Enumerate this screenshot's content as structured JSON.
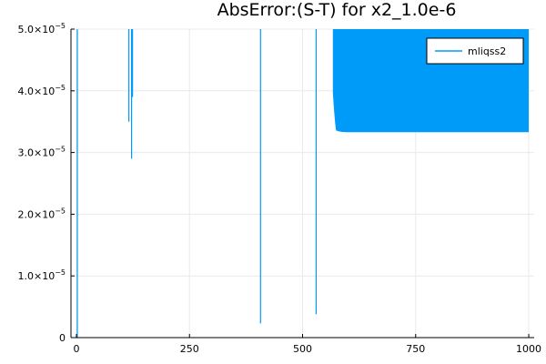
{
  "chart_data": {
    "type": "line",
    "title": "AbsError:(S-T) for x2_1.0e-6",
    "xlabel": "",
    "ylabel": "",
    "xlim": [
      -12,
      1012
    ],
    "ylim": [
      0,
      5e-05
    ],
    "x_ticks": [
      0,
      250,
      500,
      750,
      1000
    ],
    "x_tick_labels": [
      "0",
      "250",
      "500",
      "750",
      "1000"
    ],
    "y_ticks": [
      0,
      1e-05,
      2e-05,
      3e-05,
      4e-05,
      5e-05
    ],
    "y_tick_labels": [
      {
        "mant": "0",
        "exp": ""
      },
      {
        "mant": "1.0×10",
        "exp": "−5"
      },
      {
        "mant": "2.0×10",
        "exp": "−5"
      },
      {
        "mant": "3.0×10",
        "exp": "−5"
      },
      {
        "mant": "4.0×10",
        "exp": "−5"
      },
      {
        "mant": "5.0×10",
        "exp": "−5"
      }
    ],
    "grid": true,
    "legend_position": "top-right",
    "series": [
      {
        "name": "mliqss2",
        "color": "#009af9",
        "spikes": [
          {
            "x": 2,
            "y_low": 0,
            "y_high": 5e-05
          },
          {
            "x": 116,
            "y_low": 3.5e-05,
            "y_high": 5e-05
          },
          {
            "x": 122,
            "y_low": 2.9e-05,
            "y_high": 5e-05
          },
          {
            "x": 124,
            "y_low": 3.9e-05,
            "y_high": 5e-05
          },
          {
            "x": 407,
            "y_low": 2.3e-06,
            "y_high": 5e-05
          },
          {
            "x": 530,
            "y_low": 3.8e-06,
            "y_high": 5e-05
          }
        ],
        "band": {
          "x_start": 567,
          "x_end": 1000,
          "y_low": 3.33e-05,
          "y_high": 5e-05,
          "shoulder_x": 590,
          "shoulder_y": 3.36e-05
        }
      }
    ]
  }
}
